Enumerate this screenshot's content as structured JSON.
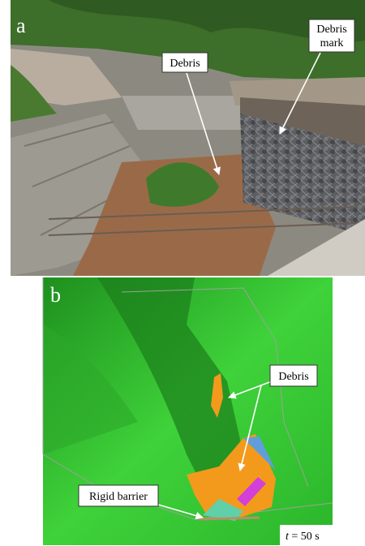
{
  "panel_a": {
    "label": "a",
    "callouts": [
      {
        "lines": [
          "Debris"
        ]
      },
      {
        "lines": [
          "Debris",
          "mark"
        ]
      }
    ]
  },
  "panel_b": {
    "label": "b",
    "callouts": [
      {
        "lines": [
          "Debris"
        ]
      },
      {
        "lines": [
          "Rigid barrier"
        ]
      }
    ],
    "time": {
      "variable": "t",
      "rest": "= 50 s"
    }
  }
}
